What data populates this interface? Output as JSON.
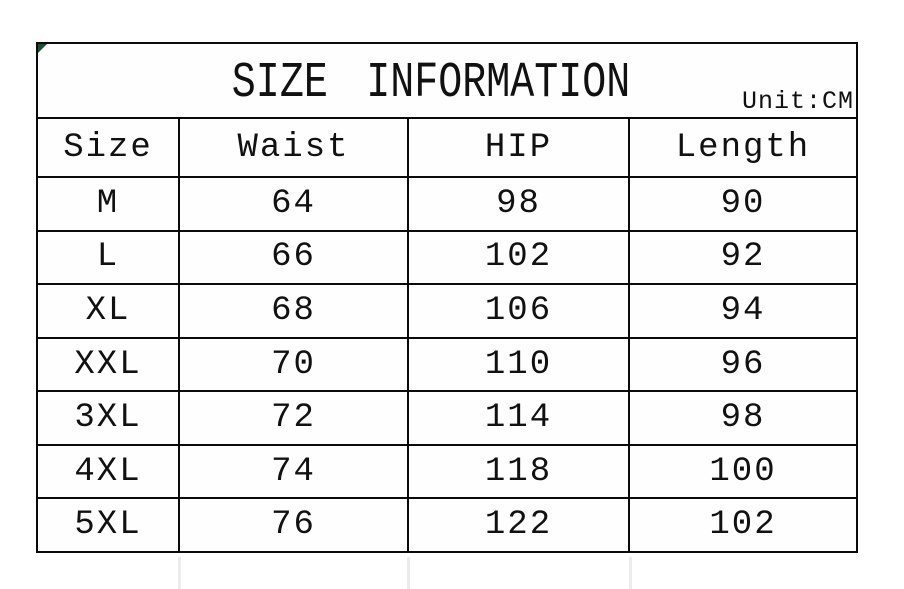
{
  "chart_data": {
    "type": "table",
    "title": "SIZE INFORMATION",
    "unit_label": "Unit:CM",
    "columns": [
      "Size",
      "Waist",
      "HIP",
      "Length"
    ],
    "rows": [
      [
        "M",
        64,
        98,
        90
      ],
      [
        "L",
        66,
        102,
        92
      ],
      [
        "XL",
        68,
        106,
        94
      ],
      [
        "XXL",
        70,
        110,
        96
      ],
      [
        "3XL",
        72,
        114,
        98
      ],
      [
        "4XL",
        74,
        118,
        100
      ],
      [
        "5XL",
        76,
        122,
        102
      ]
    ]
  },
  "colors": {
    "background": "#ffffff",
    "border": "#0a0a0a",
    "text": "#111111",
    "corner_mark": "#1e4d2f",
    "ghost_line": "#ececec"
  }
}
